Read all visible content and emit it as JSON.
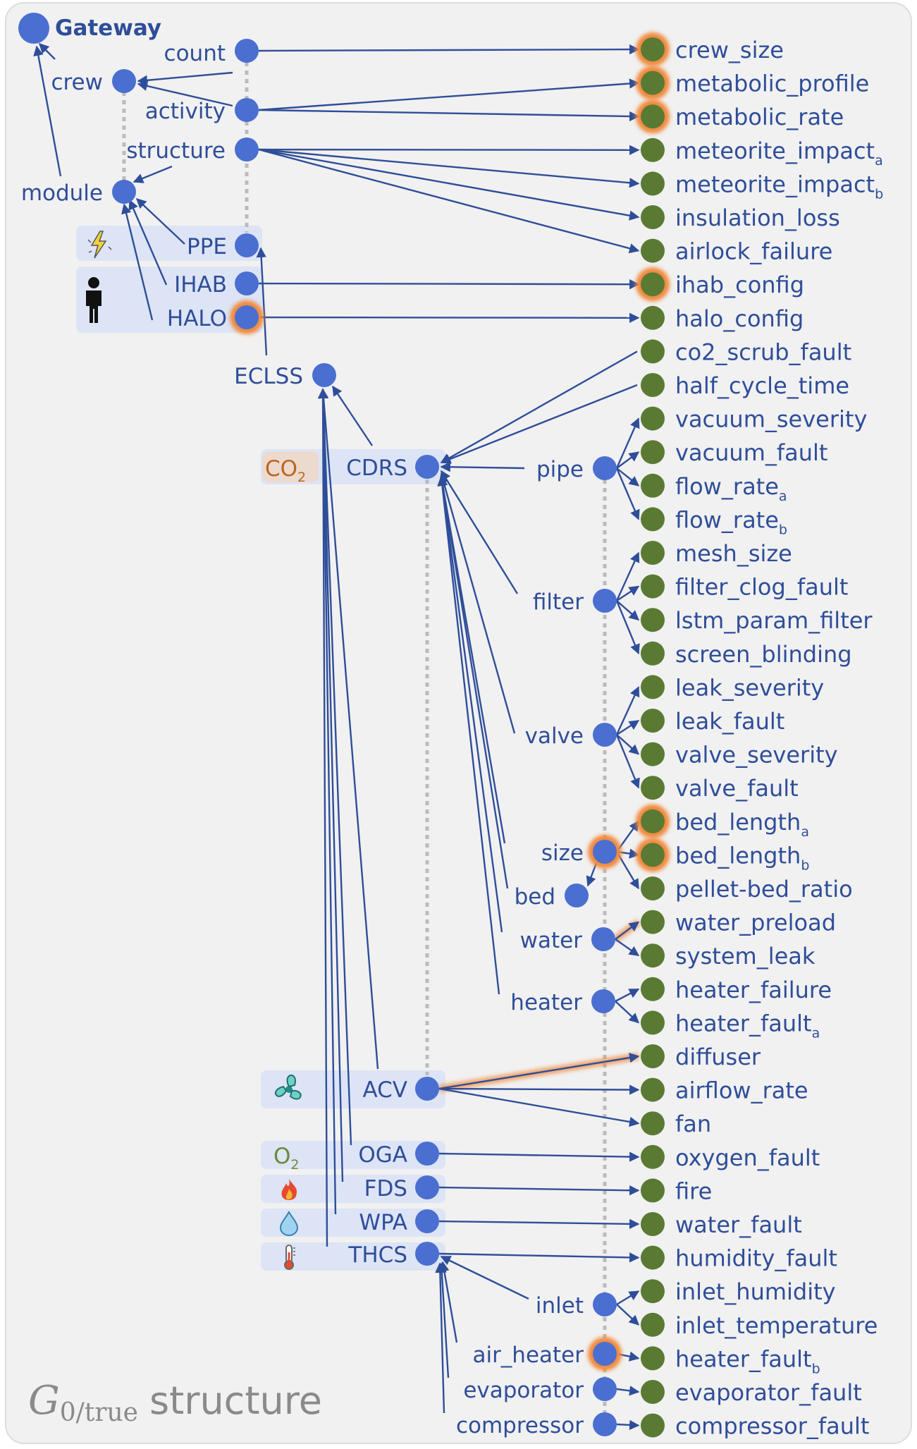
{
  "root": {
    "label": "Gateway"
  },
  "hierarchy_nodes": [
    {
      "id": "count",
      "label": "count"
    },
    {
      "id": "crew",
      "label": "crew"
    },
    {
      "id": "activity",
      "label": "activity"
    },
    {
      "id": "structure",
      "label": "structure"
    },
    {
      "id": "module",
      "label": "module"
    },
    {
      "id": "ppe",
      "label": "PPE"
    },
    {
      "id": "ihab",
      "label": "IHAB"
    },
    {
      "id": "halo",
      "label": "HALO"
    },
    {
      "id": "eclss",
      "label": "ECLSS"
    },
    {
      "id": "cdrs",
      "label": "CDRS"
    },
    {
      "id": "pipe",
      "label": "pipe"
    },
    {
      "id": "filter",
      "label": "filter"
    },
    {
      "id": "valve",
      "label": "valve"
    },
    {
      "id": "size",
      "label": "size"
    },
    {
      "id": "bed",
      "label": "bed"
    },
    {
      "id": "water",
      "label": "water"
    },
    {
      "id": "heater",
      "label": "heater"
    },
    {
      "id": "acv",
      "label": "ACV"
    },
    {
      "id": "oga",
      "label": "OGA"
    },
    {
      "id": "fds",
      "label": "FDS"
    },
    {
      "id": "wpa",
      "label": "WPA"
    },
    {
      "id": "thcs",
      "label": "THCS"
    },
    {
      "id": "inlet",
      "label": "inlet"
    },
    {
      "id": "air_heater",
      "label": "air_heater"
    },
    {
      "id": "evaporator",
      "label": "evaporator"
    },
    {
      "id": "compressor",
      "label": "compressor"
    }
  ],
  "leaf_nodes": [
    {
      "label": "crew_size",
      "sub": "",
      "highlighted": true
    },
    {
      "label": "metabolic_profile",
      "sub": "",
      "highlighted": true
    },
    {
      "label": "metabolic_rate",
      "sub": "",
      "highlighted": true
    },
    {
      "label": "meteorite_impact",
      "sub": "a",
      "highlighted": false
    },
    {
      "label": "meteorite_impact",
      "sub": "b",
      "highlighted": false
    },
    {
      "label": "insulation_loss",
      "sub": "",
      "highlighted": false
    },
    {
      "label": "airlock_failure",
      "sub": "",
      "highlighted": false
    },
    {
      "label": "ihab_config",
      "sub": "",
      "highlighted": true
    },
    {
      "label": "halo_config",
      "sub": "",
      "highlighted": false
    },
    {
      "label": "co2_scrub_fault",
      "sub": "",
      "highlighted": false
    },
    {
      "label": "half_cycle_time",
      "sub": "",
      "highlighted": false
    },
    {
      "label": "vacuum_severity",
      "sub": "",
      "highlighted": false
    },
    {
      "label": "vacuum_fault",
      "sub": "",
      "highlighted": false
    },
    {
      "label": "flow_rate",
      "sub": "a",
      "highlighted": false
    },
    {
      "label": "flow_rate",
      "sub": "b",
      "highlighted": false
    },
    {
      "label": "mesh_size",
      "sub": "",
      "highlighted": false
    },
    {
      "label": "filter_clog_fault",
      "sub": "",
      "highlighted": false
    },
    {
      "label": "lstm_param_filter",
      "sub": "",
      "highlighted": false
    },
    {
      "label": "screen_blinding",
      "sub": "",
      "highlighted": false
    },
    {
      "label": "leak_severity",
      "sub": "",
      "highlighted": false
    },
    {
      "label": "leak_fault",
      "sub": "",
      "highlighted": false
    },
    {
      "label": "valve_severity",
      "sub": "",
      "highlighted": false
    },
    {
      "label": "valve_fault",
      "sub": "",
      "highlighted": false
    },
    {
      "label": "bed_length",
      "sub": "a",
      "highlighted": true
    },
    {
      "label": "bed_length",
      "sub": "b",
      "highlighted": true
    },
    {
      "label": "pellet-bed_ratio",
      "sub": "",
      "highlighted": false
    },
    {
      "label": "water_preload",
      "sub": "",
      "highlighted": false
    },
    {
      "label": "system_leak",
      "sub": "",
      "highlighted": false
    },
    {
      "label": "heater_failure",
      "sub": "",
      "highlighted": false
    },
    {
      "label": "heater_fault",
      "sub": "a",
      "highlighted": false
    },
    {
      "label": "diffuser",
      "sub": "",
      "highlighted": false
    },
    {
      "label": "airflow_rate",
      "sub": "",
      "highlighted": false
    },
    {
      "label": "fan",
      "sub": "",
      "highlighted": false
    },
    {
      "label": "oxygen_fault",
      "sub": "",
      "highlighted": false
    },
    {
      "label": "fire",
      "sub": "",
      "highlighted": false
    },
    {
      "label": "water_fault",
      "sub": "",
      "highlighted": false
    },
    {
      "label": "humidity_fault",
      "sub": "",
      "highlighted": false
    },
    {
      "label": "inlet_humidity",
      "sub": "",
      "highlighted": false
    },
    {
      "label": "inlet_temperature",
      "sub": "",
      "highlighted": false
    },
    {
      "label": "heater_fault",
      "sub": "b",
      "highlighted": false
    },
    {
      "label": "evaporator_fault",
      "sub": "",
      "highlighted": false
    },
    {
      "label": "compressor_fault",
      "sub": "",
      "highlighted": false
    }
  ],
  "highlighted_hierarchy_nodes": [
    "halo",
    "size",
    "air_heater"
  ],
  "badges": {
    "co2_main": "CO",
    "co2_sub": "2",
    "o2_main": "O",
    "o2_sub": "2"
  },
  "caption": {
    "g": "G",
    "sub": "0/true",
    "word": "structure"
  },
  "colors": {
    "node_blue": "#4a6fd1",
    "leaf_green": "#5a7a34",
    "edge_blue": "#2f4e99",
    "highlight_orange": "#f08a3c",
    "band_fill": "#dde4f5",
    "co2_orange": "#c0641c",
    "o2_green": "#6a8a3a"
  },
  "icons": [
    "lightning-icon",
    "person-icon",
    "fan-icon",
    "fire-icon",
    "water-drop-icon",
    "thermometer-icon"
  ]
}
